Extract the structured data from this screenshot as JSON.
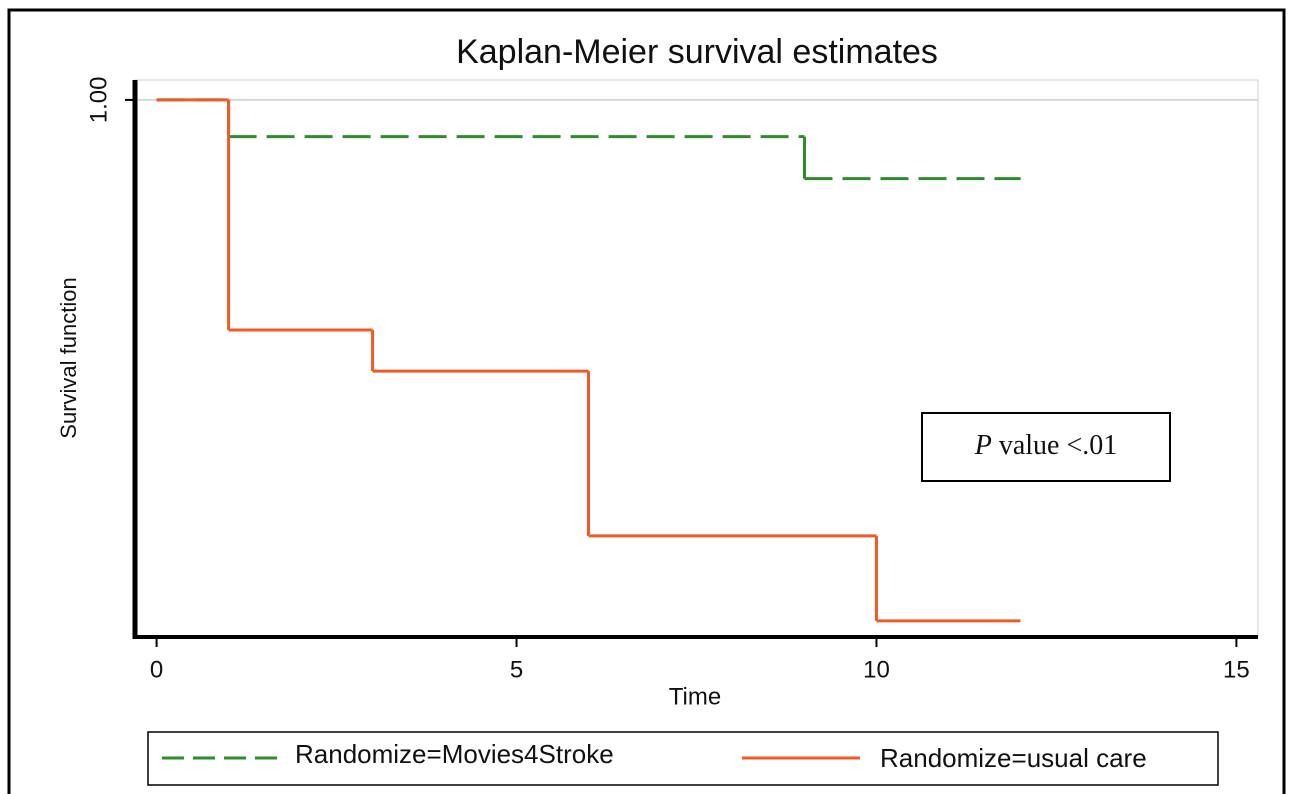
{
  "chart_data": {
    "type": "step",
    "title": "Kaplan-Meier survival estimates",
    "xlabel": "Time",
    "ylabel": "Survival function",
    "annotation": {
      "italic": "P",
      "text": "value <.01"
    },
    "xlim": [
      -0.3,
      15.3
    ],
    "xticks": [
      0,
      5,
      10,
      15
    ],
    "ylim": [
      0.4,
      1.02
    ],
    "yticks": [
      {
        "value": 1,
        "label": "1.00"
      }
    ],
    "series": [
      {
        "name": "Randomize=Movies4Stroke",
        "color": "#2e8b2e",
        "dash": true,
        "x": [
          0,
          1,
          9,
          12
        ],
        "values": [
          1,
          0.959,
          0.912,
          0.912
        ]
      },
      {
        "name": "Randomize=usual care",
        "color": "#f05a28",
        "dash": false,
        "x": [
          0,
          1,
          3,
          6,
          10,
          12
        ],
        "values": [
          1,
          0.743,
          0.697,
          0.513,
          0.418,
          0.418
        ]
      }
    ]
  }
}
